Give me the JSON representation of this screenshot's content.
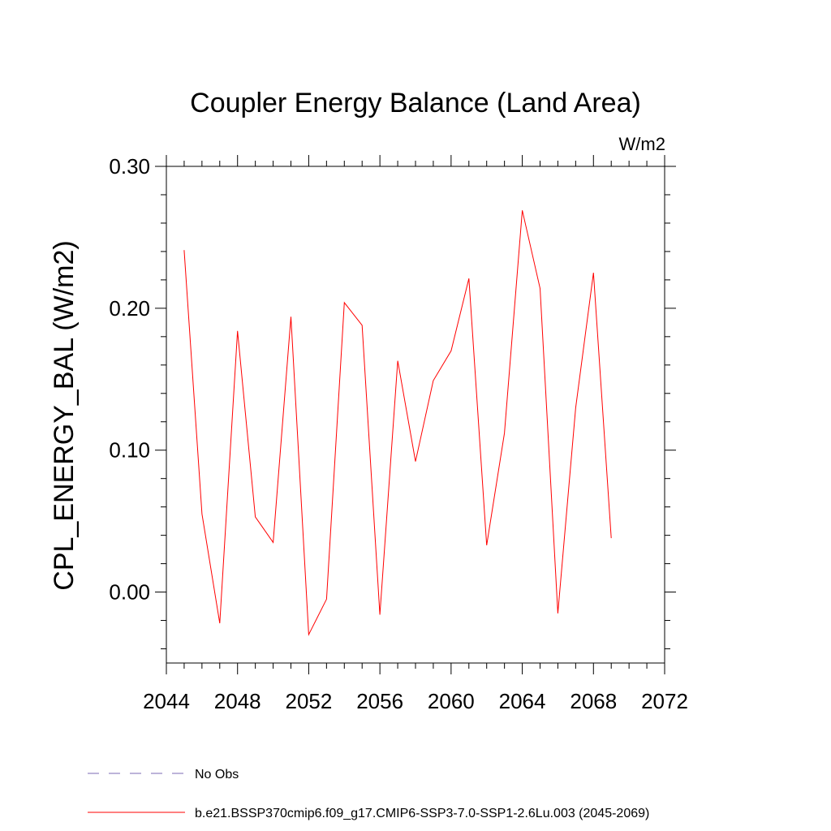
{
  "chart_data": {
    "type": "line",
    "title": "Coupler Energy Balance (Land Area)",
    "units_label": "W/m2",
    "ylabel": "CPL_ENERGY_BAL  (W/m2)",
    "xlabel": "",
    "xlim": [
      2044,
      2072
    ],
    "ylim": [
      -0.05,
      0.3
    ],
    "x_ticks": [
      2044,
      2048,
      2052,
      2056,
      2060,
      2064,
      2068,
      2072
    ],
    "x_tick_labels": [
      "2044",
      "2048",
      "2052",
      "2056",
      "2060",
      "2064",
      "2068",
      "2072"
    ],
    "y_ticks": [
      0.0,
      0.1,
      0.2,
      0.3
    ],
    "y_tick_labels": [
      "0.00",
      "0.10",
      "0.20",
      "0.30"
    ],
    "grid": false,
    "legend_position": "bottom-left",
    "series": [
      {
        "name": "b.e21.BSSP370cmip6.f09_g17.CMIP6-SSP3-7.0-SSP1-2.6Lu.003 (2045-2069)",
        "color": "#ff0000",
        "style": "solid",
        "x": [
          2045,
          2046,
          2047,
          2048,
          2049,
          2050,
          2051,
          2052,
          2053,
          2054,
          2055,
          2056,
          2057,
          2058,
          2059,
          2060,
          2061,
          2062,
          2063,
          2064,
          2065,
          2066,
          2067,
          2068,
          2069
        ],
        "y": [
          0.241,
          0.055,
          -0.022,
          0.184,
          0.053,
          0.035,
          0.194,
          -0.03,
          -0.005,
          0.204,
          0.188,
          -0.016,
          0.163,
          0.092,
          0.149,
          0.17,
          0.221,
          0.033,
          0.112,
          0.269,
          0.214,
          -0.015,
          0.13,
          0.225,
          0.038
        ]
      }
    ],
    "legend": [
      {
        "label": "No Obs",
        "color": "#7b68b5",
        "style": "dashed"
      },
      {
        "label": "b.e21.BSSP370cmip6.f09_g17.CMIP6-SSP3-7.0-SSP1-2.6Lu.003 (2045-2069)",
        "color": "#ff0000",
        "style": "solid"
      }
    ]
  }
}
